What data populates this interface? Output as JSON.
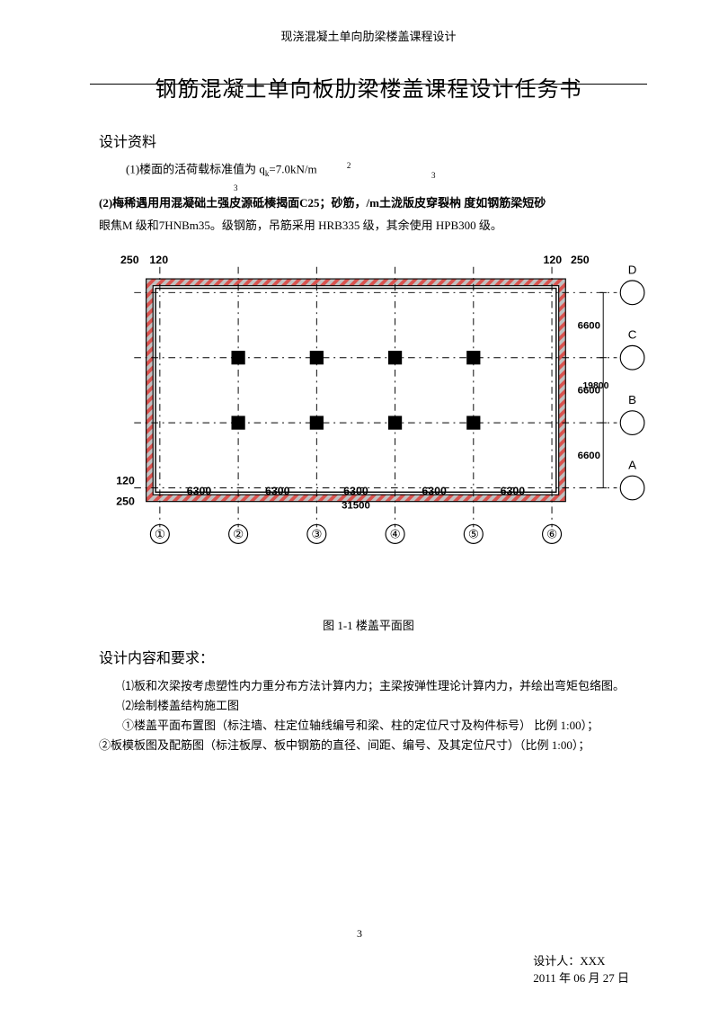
{
  "header": {
    "course": "现浇混凝土单向肋梁楼盖课程设计"
  },
  "title": "钢筋混凝土单向板肋梁楼盖课程设计任务书",
  "section1_heading": "设计资料",
  "para1_prefix": "(1)楼面的活荷载标准值为 q",
  "para1_sub": "k",
  "para1_eq": "=7.0kN/m",
  "para1_sup": "2",
  "lone_sup_a": "3",
  "lone_sup_b": "3",
  "para2": "(2)梅稀遇用用混凝础土强皮源砥楱揭面C25；砂筋，/m土泷版皮穿裂枘 度如钢筋梁短砂",
  "para2b": "眼焦M 级和7HNBm35。级钢筋，吊筋采用 HRB335 级，其余使用 HPB300 级。",
  "diagram": {
    "top_dims_left": [
      "250",
      "120"
    ],
    "top_dims_right": [
      "120",
      "250"
    ],
    "bottom_dims_left": [
      "120",
      "250"
    ],
    "bay_h": [
      "6300",
      "6300",
      "6300",
      "6300",
      "6300"
    ],
    "total_h": "31500",
    "bay_v": [
      "6600",
      "6600",
      "6600"
    ],
    "total_v": "19800",
    "axis_h_labels": [
      "①",
      "②",
      "③",
      "④",
      "⑤",
      "⑥"
    ],
    "axis_v_labels": [
      "A",
      "B",
      "C",
      "D"
    ],
    "colors": {
      "wall_a": "#d9534f",
      "wall_b": "#c0c0c0",
      "column": "#000000",
      "dash": "#000000",
      "dim_line": "#000000",
      "circle": "#000000"
    }
  },
  "caption": "图 1-1 楼盖平面图",
  "section2_heading": "设计内容和要求：",
  "req1": "⑴板和次梁按考虑塑性内力重分布方法计算内力；主梁按弹性理论计算内力，并绘出弯矩包络图。",
  "req2": "⑵绘制楼盖结构施工图",
  "req3": "①楼盖平面布置图（标注墙、柱定位轴线编号和梁、柱的定位尺寸及构件标号） 比例 1:00）；",
  "req4": "②板模板图及配筋图（标注板厚、板中钢筋的直径、间距、编号、及其定位尺寸）（比例 1:00）；",
  "page_number": "3",
  "footer": {
    "designer_label": "设计人：",
    "designer_name": "XXX",
    "date": "2011 年 06 月 27 日"
  }
}
